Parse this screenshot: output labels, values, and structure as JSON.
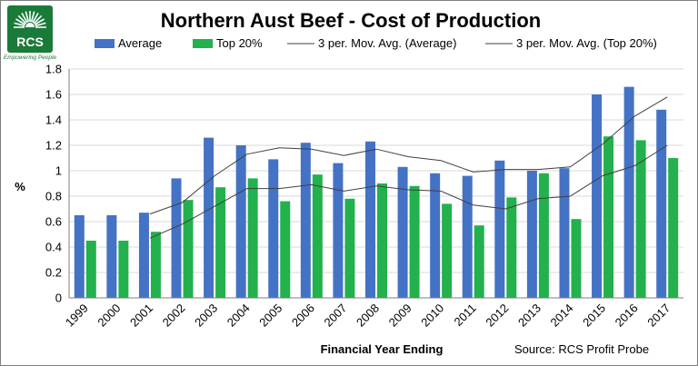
{
  "logo": {
    "text": "RCS",
    "tagline": "Empowering People",
    "color": "#1a7a3a"
  },
  "chart_data": {
    "type": "bar",
    "title": "Northern Aust Beef - Cost of Production",
    "xlabel": "Financial Year Ending",
    "ylabel": "%",
    "source": "Source: RCS Profit Probe",
    "categories": [
      "1999",
      "2000",
      "2001",
      "2002",
      "2003",
      "2004",
      "2005",
      "2006",
      "2007",
      "2008",
      "2009",
      "2010",
      "2011",
      "2012",
      "2013",
      "2014",
      "2015",
      "2016",
      "2017"
    ],
    "ylim": [
      0,
      1.8
    ],
    "yticks": [
      0,
      0.2,
      0.4,
      0.6,
      0.8,
      1,
      1.2,
      1.4,
      1.6,
      1.8
    ],
    "ytick_labels": [
      "0",
      "0.2",
      "0.4",
      "0.6",
      "0.8",
      "1",
      "1.2",
      "1.4",
      "1.6",
      "1.8"
    ],
    "grid": true,
    "legend_position": "top",
    "series": [
      {
        "name": "Average",
        "color": "#4472c4",
        "values": [
          0.65,
          0.65,
          0.67,
          0.94,
          1.26,
          1.2,
          1.09,
          1.22,
          1.06,
          1.23,
          1.03,
          0.98,
          0.96,
          1.08,
          1.0,
          1.02,
          1.6,
          1.66,
          1.48
        ]
      },
      {
        "name": "Top 20%",
        "color": "#22b14c",
        "values": [
          0.45,
          0.45,
          0.52,
          0.77,
          0.87,
          0.94,
          0.76,
          0.97,
          0.78,
          0.9,
          0.88,
          0.74,
          0.57,
          0.79,
          0.98,
          0.62,
          1.27,
          1.24,
          1.1
        ]
      }
    ],
    "trendlines": [
      {
        "name": "3 per. Mov. Avg. (Average)",
        "color": "#404040",
        "values": [
          null,
          null,
          0.66,
          0.75,
          0.96,
          1.13,
          1.18,
          1.17,
          1.12,
          1.17,
          1.11,
          1.08,
          0.99,
          1.01,
          1.01,
          1.03,
          1.21,
          1.43,
          1.58
        ]
      },
      {
        "name": "3 per. Mov. Avg. (Top 20%)",
        "color": "#404040",
        "values": [
          null,
          null,
          0.47,
          0.58,
          0.72,
          0.86,
          0.86,
          0.89,
          0.84,
          0.88,
          0.85,
          0.84,
          0.73,
          0.7,
          0.78,
          0.8,
          0.96,
          1.04,
          1.2
        ]
      }
    ]
  }
}
